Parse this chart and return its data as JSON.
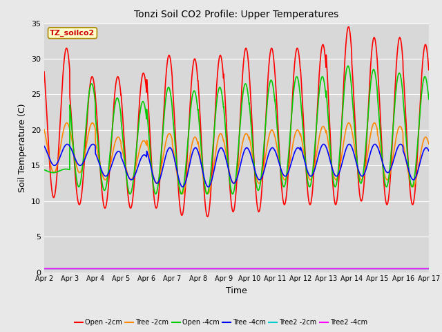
{
  "title": "Tonzi Soil CO2 Profile: Upper Temperatures",
  "xlabel": "Time",
  "ylabel": "Soil Temperature (C)",
  "ylim": [
    0,
    35
  ],
  "background_color": "#e8e8e8",
  "plot_bg": "#d8d8d8",
  "label_box": "TZ_soilco2",
  "label_box_color": "#ffffcc",
  "label_box_border": "#aa8800",
  "label_box_text": "#cc0000",
  "xtick_labels": [
    "Apr 2",
    "Apr 3",
    "Apr 4",
    "Apr 5",
    "Apr 6",
    "Apr 7",
    "Apr 8",
    "Apr 9",
    "Apr 10",
    "Apr 11",
    "Apr 12",
    "Apr 13",
    "Apr 14",
    "Apr 15",
    "Apr 16",
    "Apr 17"
  ],
  "ytick_values": [
    0,
    5,
    10,
    15,
    20,
    25,
    30,
    35
  ],
  "series": [
    {
      "label": "Open -2cm",
      "color": "#ff0000",
      "linewidth": 1.2
    },
    {
      "label": "Tree -2cm",
      "color": "#ff8800",
      "linewidth": 1.2
    },
    {
      "label": "Open -4cm",
      "color": "#00cc00",
      "linewidth": 1.2
    },
    {
      "label": "Tree -4cm",
      "color": "#0000ff",
      "linewidth": 1.2
    },
    {
      "label": "Tree2 -2cm",
      "color": "#00cccc",
      "linewidth": 1.2
    },
    {
      "label": "Tree2 -4cm",
      "color": "#ff00ff",
      "linewidth": 1.2
    }
  ],
  "open2_peaks": [
    31.5,
    27.5,
    27.5,
    28,
    30.5,
    30,
    30.5,
    31.5,
    31.5,
    31.5,
    32,
    34.5,
    33,
    33,
    32,
    34
  ],
  "open2_troughs": [
    10.5,
    9.5,
    9.0,
    9.0,
    9.0,
    8.0,
    7.8,
    8.5,
    8.5,
    9.5,
    9.5,
    9.5,
    10.0,
    9.5,
    9.5,
    11.5
  ],
  "open4_peaks": [
    14.5,
    26.5,
    24.5,
    24,
    26,
    25.5,
    26,
    26.5,
    27,
    27.5,
    27.5,
    29,
    28.5,
    28,
    27.5,
    29
  ],
  "open4_troughs": [
    14.0,
    12.0,
    11.5,
    11.0,
    11.0,
    11.0,
    11.0,
    11.0,
    11.5,
    12.0,
    12.0,
    12.0,
    12.5,
    12.0,
    12.0,
    13.0
  ],
  "tree2_peaks": [
    21.0,
    21.0,
    19.0,
    18.5,
    19.5,
    19.0,
    19.5,
    19.5,
    20.0,
    20.0,
    20.5,
    21.0,
    21.0,
    20.5,
    19.0,
    21.0
  ],
  "tree2_troughs": [
    14.0,
    14.0,
    13.0,
    13.0,
    12.5,
    11.0,
    11.0,
    12.5,
    12.5,
    13.0,
    13.0,
    13.0,
    13.0,
    13.0,
    12.0,
    14.5
  ],
  "tree4_peaks": [
    18.0,
    18.0,
    17.0,
    16.5,
    17.5,
    17.5,
    17.5,
    17.5,
    17.5,
    17.5,
    18.0,
    18.0,
    18.0,
    18.0,
    17.5,
    18.0
  ],
  "tree4_troughs": [
    15.0,
    15.0,
    13.5,
    13.0,
    12.5,
    12.0,
    12.0,
    12.5,
    13.0,
    13.5,
    13.5,
    13.5,
    13.5,
    14.0,
    13.0,
    14.5
  ],
  "phase_open2": 0.62,
  "phase_open4": 0.6,
  "phase_tree2": 0.63,
  "phase_tree4": 0.65,
  "n_per_day": 144,
  "n_days": 15
}
